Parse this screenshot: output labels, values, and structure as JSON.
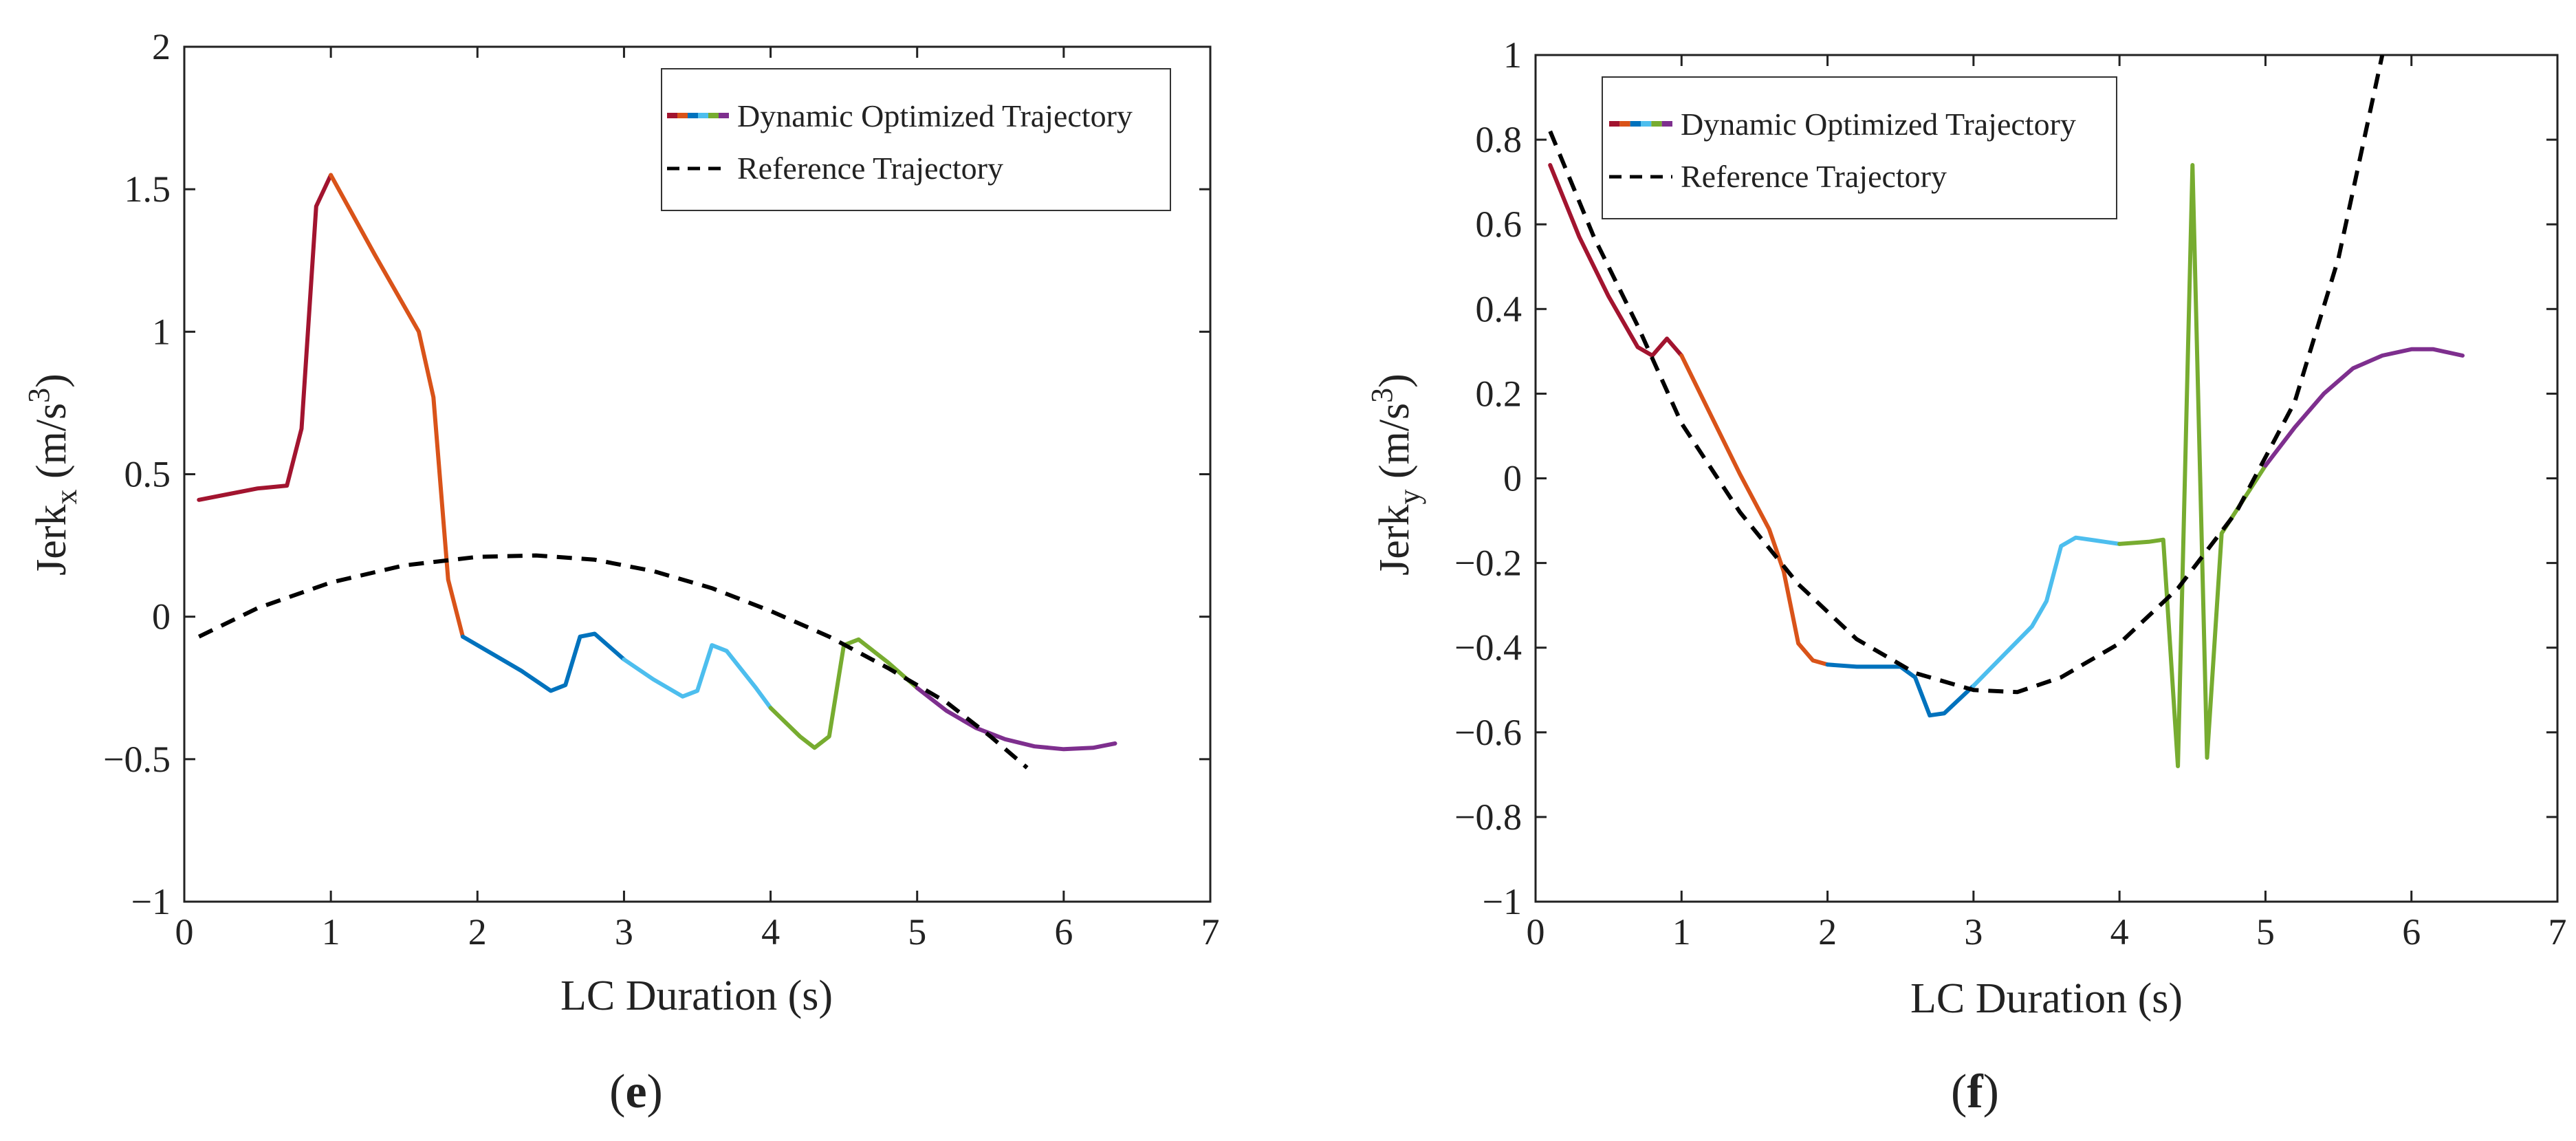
{
  "chart_data": [
    {
      "type": "line",
      "panel_label": {
        "open": "(",
        "letter": "e",
        "close": ")"
      },
      "title": "",
      "xlabel": "LC Duration (s)",
      "ylabel": {
        "base": "Jerk",
        "sub": "x",
        "unit_open": " (m/s",
        "sup": "3",
        "unit_close": ")"
      },
      "xlim": [
        0,
        7
      ],
      "ylim": [
        -1,
        2
      ],
      "xticks": [
        0,
        1,
        2,
        3,
        4,
        5,
        6,
        7
      ],
      "xtick_labels": [
        "0",
        "1",
        "2",
        "3",
        "4",
        "5",
        "6",
        "7"
      ],
      "yticks": [
        -1,
        -0.5,
        0,
        0.5,
        1,
        1.5,
        2
      ],
      "ytick_labels": [
        "−1",
        "−0.5",
        "0",
        "0.5",
        "1",
        "1.5",
        "2"
      ],
      "legend": {
        "position": "top-right",
        "entries": [
          "Dynamic Optimized Trajectory",
          "Reference Trajectory"
        ]
      },
      "series": [
        {
          "name": "Dynamic Optimized Trajectory",
          "segments": [
            {
              "color": "#a2142f",
              "points": [
                [
                  0.1,
                  0.41
                ],
                [
                  0.3,
                  0.43
                ],
                [
                  0.5,
                  0.45
                ],
                [
                  0.7,
                  0.46
                ],
                [
                  0.8,
                  0.66
                ],
                [
                  0.9,
                  1.44
                ],
                [
                  1.0,
                  1.55
                ]
              ]
            },
            {
              "color": "#d95319",
              "points": [
                [
                  1.0,
                  1.55
                ],
                [
                  1.3,
                  1.27
                ],
                [
                  1.6,
                  1.0
                ],
                [
                  1.7,
                  0.77
                ],
                [
                  1.8,
                  0.13
                ],
                [
                  1.9,
                  -0.07
                ]
              ]
            },
            {
              "color": "#0072bd",
              "points": [
                [
                  1.9,
                  -0.07
                ],
                [
                  2.1,
                  -0.13
                ],
                [
                  2.3,
                  -0.19
                ],
                [
                  2.5,
                  -0.26
                ],
                [
                  2.6,
                  -0.24
                ],
                [
                  2.7,
                  -0.07
                ],
                [
                  2.8,
                  -0.06
                ],
                [
                  3.0,
                  -0.15
                ]
              ]
            },
            {
              "color": "#4dbeee",
              "points": [
                [
                  3.0,
                  -0.15
                ],
                [
                  3.2,
                  -0.22
                ],
                [
                  3.4,
                  -0.28
                ],
                [
                  3.5,
                  -0.26
                ],
                [
                  3.6,
                  -0.1
                ],
                [
                  3.7,
                  -0.12
                ],
                [
                  3.9,
                  -0.25
                ],
                [
                  4.0,
                  -0.32
                ]
              ]
            },
            {
              "color": "#77ac30",
              "points": [
                [
                  4.0,
                  -0.32
                ],
                [
                  4.2,
                  -0.42
                ],
                [
                  4.3,
                  -0.46
                ],
                [
                  4.4,
                  -0.42
                ],
                [
                  4.5,
                  -0.1
                ],
                [
                  4.6,
                  -0.08
                ],
                [
                  4.8,
                  -0.16
                ],
                [
                  5.0,
                  -0.25
                ]
              ]
            },
            {
              "color": "#7e2f8e",
              "points": [
                [
                  5.0,
                  -0.25
                ],
                [
                  5.2,
                  -0.33
                ],
                [
                  5.4,
                  -0.39
                ],
                [
                  5.6,
                  -0.43
                ],
                [
                  5.8,
                  -0.455
                ],
                [
                  6.0,
                  -0.465
                ],
                [
                  6.2,
                  -0.46
                ],
                [
                  6.35,
                  -0.445
                ]
              ]
            }
          ]
        },
        {
          "name": "Reference Trajectory",
          "style": "dashed",
          "color": "#000000",
          "points": [
            [
              0.1,
              -0.07
            ],
            [
              0.5,
              0.03
            ],
            [
              1.0,
              0.12
            ],
            [
              1.5,
              0.18
            ],
            [
              2.0,
              0.21
            ],
            [
              2.4,
              0.215
            ],
            [
              2.8,
              0.2
            ],
            [
              3.2,
              0.16
            ],
            [
              3.6,
              0.1
            ],
            [
              4.0,
              0.02
            ],
            [
              4.4,
              -0.07
            ],
            [
              4.8,
              -0.18
            ],
            [
              5.2,
              -0.3
            ],
            [
              5.5,
              -0.42
            ],
            [
              5.75,
              -0.53
            ]
          ]
        }
      ]
    },
    {
      "type": "line",
      "panel_label": {
        "open": "(",
        "letter": "f",
        "close": ")"
      },
      "title": "",
      "xlabel": "LC Duration (s)",
      "ylabel": {
        "base": "Jerk",
        "sub": "y",
        "unit_open": " (m/s",
        "sup": "3",
        "unit_close": ")"
      },
      "xlim": [
        0,
        7
      ],
      "ylim": [
        -1,
        1
      ],
      "xticks": [
        0,
        1,
        2,
        3,
        4,
        5,
        6,
        7
      ],
      "xtick_labels": [
        "0",
        "1",
        "2",
        "3",
        "4",
        "5",
        "6",
        "7"
      ],
      "yticks": [
        -1,
        -0.8,
        -0.6,
        -0.4,
        -0.2,
        0,
        0.2,
        0.4,
        0.6,
        0.8,
        1
      ],
      "ytick_labels": [
        "−1",
        "−0.8",
        "−0.6",
        "−0.4",
        "−0.2",
        "0",
        "0.2",
        "0.4",
        "0.6",
        "0.8",
        "1"
      ],
      "legend": {
        "position": "top-left",
        "entries": [
          "Dynamic Optimized Trajectory",
          "Reference Trajectory"
        ]
      },
      "series": [
        {
          "name": "Dynamic Optimized Trajectory",
          "segments": [
            {
              "color": "#a2142f",
              "points": [
                [
                  0.1,
                  0.74
                ],
                [
                  0.3,
                  0.57
                ],
                [
                  0.5,
                  0.43
                ],
                [
                  0.7,
                  0.31
                ],
                [
                  0.8,
                  0.29
                ],
                [
                  0.9,
                  0.33
                ],
                [
                  1.0,
                  0.29
                ]
              ]
            },
            {
              "color": "#d95319",
              "points": [
                [
                  1.0,
                  0.29
                ],
                [
                  1.2,
                  0.15
                ],
                [
                  1.4,
                  0.01
                ],
                [
                  1.6,
                  -0.12
                ],
                [
                  1.7,
                  -0.22
                ],
                [
                  1.8,
                  -0.39
                ],
                [
                  1.9,
                  -0.43
                ],
                [
                  2.0,
                  -0.44
                ]
              ]
            },
            {
              "color": "#0072bd",
              "points": [
                [
                  2.0,
                  -0.44
                ],
                [
                  2.2,
                  -0.445
                ],
                [
                  2.4,
                  -0.445
                ],
                [
                  2.5,
                  -0.445
                ],
                [
                  2.6,
                  -0.47
                ],
                [
                  2.7,
                  -0.56
                ],
                [
                  2.8,
                  -0.555
                ],
                [
                  3.0,
                  -0.49
                ]
              ]
            },
            {
              "color": "#4dbeee",
              "points": [
                [
                  3.0,
                  -0.49
                ],
                [
                  3.2,
                  -0.42
                ],
                [
                  3.4,
                  -0.35
                ],
                [
                  3.5,
                  -0.29
                ],
                [
                  3.6,
                  -0.16
                ],
                [
                  3.7,
                  -0.14
                ],
                [
                  3.9,
                  -0.15
                ],
                [
                  4.0,
                  -0.155
                ]
              ]
            },
            {
              "color": "#77ac30",
              "points": [
                [
                  4.0,
                  -0.155
                ],
                [
                  4.2,
                  -0.15
                ],
                [
                  4.3,
                  -0.145
                ],
                [
                  4.4,
                  -0.68
                ],
                [
                  4.5,
                  0.74
                ],
                [
                  4.6,
                  -0.66
                ],
                [
                  4.7,
                  -0.13
                ],
                [
                  5.0,
                  0.03
                ]
              ]
            },
            {
              "color": "#7e2f8e",
              "points": [
                [
                  5.0,
                  0.03
                ],
                [
                  5.2,
                  0.12
                ],
                [
                  5.4,
                  0.2
                ],
                [
                  5.6,
                  0.26
                ],
                [
                  5.8,
                  0.29
                ],
                [
                  6.0,
                  0.305
                ],
                [
                  6.15,
                  0.305
                ],
                [
                  6.35,
                  0.29
                ]
              ]
            }
          ]
        },
        {
          "name": "Reference Trajectory",
          "style": "dashed",
          "color": "#000000",
          "points": [
            [
              0.1,
              0.82
            ],
            [
              0.4,
              0.57
            ],
            [
              0.7,
              0.36
            ],
            [
              1.0,
              0.13
            ],
            [
              1.4,
              -0.08
            ],
            [
              1.8,
              -0.25
            ],
            [
              2.2,
              -0.38
            ],
            [
              2.6,
              -0.46
            ],
            [
              3.0,
              -0.5
            ],
            [
              3.3,
              -0.505
            ],
            [
              3.6,
              -0.47
            ],
            [
              4.0,
              -0.39
            ],
            [
              4.4,
              -0.26
            ],
            [
              4.8,
              -0.08
            ],
            [
              5.2,
              0.18
            ],
            [
              5.5,
              0.52
            ],
            [
              5.8,
              1.0
            ]
          ]
        }
      ]
    }
  ]
}
